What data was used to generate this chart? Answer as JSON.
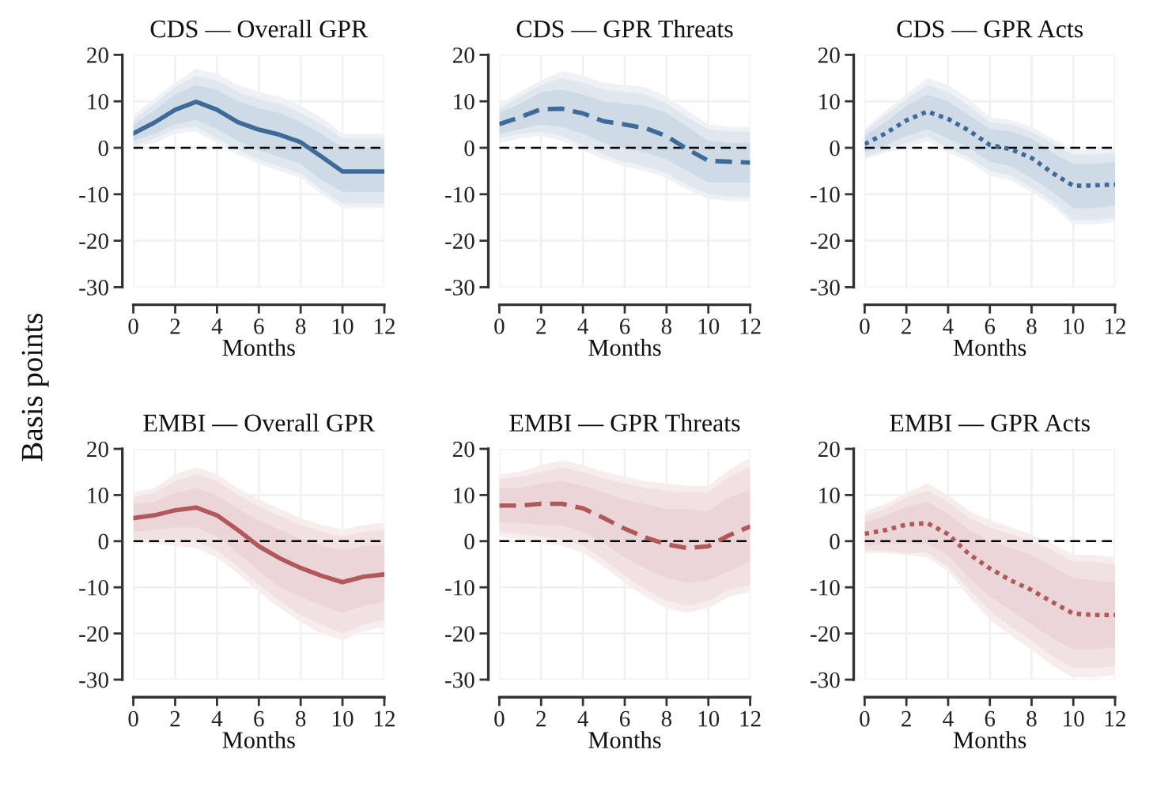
{
  "chart_data": [
    {
      "type": "line",
      "title": "CDS — Overall GPR",
      "xlabel": "Months",
      "ylabel": "Basis points",
      "x": [
        0,
        1,
        2,
        3,
        4,
        5,
        6,
        7,
        8,
        9,
        10,
        11,
        12
      ],
      "xlim": [
        0,
        12
      ],
      "ylim": [
        -30,
        20
      ],
      "xticks": [
        0,
        2,
        4,
        6,
        8,
        10,
        12
      ],
      "yticks": [
        -30,
        -20,
        -10,
        0,
        10,
        20
      ],
      "grid": true,
      "ref_lines": [
        {
          "axis": "y",
          "value": 0,
          "color": "#000000",
          "line_style": "dashed"
        }
      ],
      "series": [
        {
          "color": "#eef1f5",
          "values": [
            null,
            null,
            null,
            null,
            null,
            null,
            null,
            null,
            null,
            null,
            null,
            null,
            null
          ],
          "lower": [
            0,
            1,
            3,
            3.5,
            1,
            -1.5,
            -3.5,
            -5,
            -6.5,
            -10,
            -13,
            -13,
            -13
          ],
          "upper": [
            7,
            10.5,
            14,
            17,
            16,
            13.5,
            12,
            11,
            9,
            6.5,
            3,
            3,
            3
          ]
        },
        {
          "color": "#e1e7ee",
          "values": [
            null,
            null,
            null,
            null,
            null,
            null,
            null,
            null,
            null,
            null,
            null,
            null,
            null
          ],
          "lower": [
            0.5,
            2,
            4,
            4.5,
            2,
            -0.5,
            -2.5,
            -4,
            -5.5,
            -9,
            -12,
            -12,
            -12
          ],
          "upper": [
            6,
            9.5,
            13,
            15.5,
            14.5,
            12,
            10.5,
            9.5,
            7.5,
            5,
            2,
            2,
            2
          ]
        },
        {
          "type": "line",
          "color": "#3d6a98",
          "line_style": "solid",
          "values": [
            3.1,
            5.4,
            8.2,
            9.9,
            8.2,
            5.5,
            3.9,
            2.8,
            1.2,
            -1.9,
            -5.1,
            -5.1,
            -5.1
          ],
          "lower": [
            1.5,
            3,
            5,
            6,
            4,
            1.5,
            -0.5,
            -2,
            -3.5,
            -7,
            -9.5,
            -9.5,
            -9.5
          ],
          "upper": [
            5,
            8,
            11.5,
            13.5,
            12.5,
            10,
            8.5,
            7.5,
            5.5,
            3,
            0,
            0,
            0
          ]
        }
      ]
    },
    {
      "type": "line",
      "title": "CDS — GPR Threats",
      "xlabel": "Months",
      "x": [
        0,
        1,
        2,
        3,
        4,
        5,
        6,
        7,
        8,
        9,
        10,
        11,
        12
      ],
      "xlim": [
        0,
        12
      ],
      "ylim": [
        -30,
        20
      ],
      "xticks": [
        0,
        2,
        4,
        6,
        8,
        10,
        12
      ],
      "yticks": [
        -30,
        -20,
        -10,
        0,
        10,
        20
      ],
      "grid": true,
      "ref_lines": [
        {
          "axis": "y",
          "value": 0,
          "color": "#000000",
          "line_style": "dashed"
        }
      ],
      "series": [
        {
          "color": "#eef1f5",
          "values": [
            null,
            null,
            null,
            null,
            null,
            null,
            null,
            null,
            null,
            null,
            null,
            null,
            null
          ],
          "lower": [
            1,
            2,
            2.5,
            1.5,
            -0.5,
            -2.5,
            -4,
            -5,
            -6.5,
            -9,
            -11,
            -11.5,
            -11.5
          ],
          "upper": [
            9.5,
            12,
            14.5,
            16.5,
            15.5,
            14,
            13.5,
            13,
            11,
            8,
            5,
            4.5,
            4.5
          ]
        },
        {
          "color": "#e1e7ee",
          "values": [
            null,
            null,
            null,
            null,
            null,
            null,
            null,
            null,
            null,
            null,
            null,
            null,
            null
          ],
          "lower": [
            2,
            3,
            3.5,
            2.5,
            0.5,
            -1.5,
            -3,
            -4,
            -5.5,
            -8,
            -10,
            -10.5,
            -10.5
          ],
          "upper": [
            8.5,
            11,
            13.5,
            15,
            14,
            12.5,
            12,
            11.5,
            9.5,
            6.5,
            4,
            3.5,
            3.5
          ]
        },
        {
          "type": "line",
          "color": "#3d6a98",
          "line_style": "dashed",
          "values": [
            5.1,
            6.6,
            8.3,
            8.4,
            7.4,
            5.7,
            5.0,
            4.2,
            2.5,
            -0.3,
            -2.8,
            -3.0,
            -3.2
          ],
          "lower": [
            3,
            4,
            5,
            4.5,
            3,
            1,
            0,
            -1,
            -2.5,
            -5,
            -7.5,
            -7.5,
            -7.5
          ],
          "upper": [
            7.5,
            9.5,
            12,
            12.5,
            11.5,
            10,
            9.5,
            9,
            7.5,
            4.5,
            1.5,
            1,
            1
          ]
        }
      ]
    },
    {
      "type": "line",
      "title": "CDS — GPR Acts",
      "xlabel": "Months",
      "x": [
        0,
        1,
        2,
        3,
        4,
        5,
        6,
        7,
        8,
        9,
        10,
        11,
        12
      ],
      "xlim": [
        0,
        12
      ],
      "ylim": [
        -30,
        20
      ],
      "xticks": [
        0,
        2,
        4,
        6,
        8,
        10,
        12
      ],
      "yticks": [
        -30,
        -20,
        -10,
        0,
        10,
        20
      ],
      "grid": true,
      "ref_lines": [
        {
          "axis": "y",
          "value": 0,
          "color": "#000000",
          "line_style": "dashed"
        }
      ],
      "series": [
        {
          "color": "#eef1f5",
          "values": [
            null,
            null,
            null,
            null,
            null,
            null,
            null,
            null,
            null,
            null,
            null,
            null,
            null
          ],
          "lower": [
            -2.5,
            -1,
            0,
            1.5,
            -1,
            -3,
            -6,
            -7,
            -9.5,
            -12.5,
            -16.5,
            -16.5,
            -16
          ],
          "upper": [
            4,
            8,
            11.5,
            15,
            13.5,
            10.5,
            6.5,
            6,
            4.5,
            2,
            -0.5,
            -0.5,
            0
          ]
        },
        {
          "color": "#e1e7ee",
          "values": [
            null,
            null,
            null,
            null,
            null,
            null,
            null,
            null,
            null,
            null,
            null,
            null,
            null
          ],
          "lower": [
            -2,
            -0.5,
            1,
            2.5,
            0,
            -2,
            -5,
            -6,
            -8.5,
            -11.5,
            -15.5,
            -15.5,
            -15
          ],
          "upper": [
            3.5,
            7,
            10.5,
            13.5,
            12,
            9,
            5.5,
            5,
            3.5,
            1,
            -1.5,
            -1.5,
            -1
          ]
        },
        {
          "type": "line",
          "color": "#3d6a98",
          "line_style": "dotted",
          "values": [
            0.8,
            3.1,
            5.9,
            7.8,
            6.2,
            3.7,
            0.6,
            -0.3,
            -2.2,
            -5.4,
            -8.2,
            -8.1,
            -7.9
          ],
          "lower": [
            -1,
            0.5,
            2.5,
            4,
            2,
            0,
            -3,
            -4,
            -6.5,
            -9.5,
            -13,
            -13,
            -12.5
          ],
          "upper": [
            2.5,
            5.5,
            9,
            11.5,
            10,
            7,
            4,
            3.5,
            2,
            -1,
            -3.5,
            -3.5,
            -3
          ]
        }
      ]
    },
    {
      "type": "line",
      "title": "EMBI — Overall GPR",
      "xlabel": "Months",
      "x": [
        0,
        1,
        2,
        3,
        4,
        5,
        6,
        7,
        8,
        9,
        10,
        11,
        12
      ],
      "xlim": [
        0,
        12
      ],
      "ylim": [
        -30,
        20
      ],
      "xticks": [
        0,
        2,
        4,
        6,
        8,
        10,
        12
      ],
      "yticks": [
        -30,
        -20,
        -10,
        0,
        10,
        20
      ],
      "grid": true,
      "ref_lines": [
        {
          "axis": "y",
          "value": 0,
          "color": "#000000",
          "line_style": "dashed"
        }
      ],
      "series": [
        {
          "color": "#f7eded",
          "values": [
            null,
            null,
            null,
            null,
            null,
            null,
            null,
            null,
            null,
            null,
            null,
            null,
            null
          ],
          "lower": [
            -0.5,
            -0.5,
            -1,
            -1.5,
            -3.5,
            -7,
            -11,
            -14.5,
            -17.5,
            -20,
            -21.5,
            -19.5,
            -18.5
          ],
          "upper": [
            10.5,
            11.5,
            14.5,
            16,
            14.5,
            11.5,
            9,
            7,
            5,
            3.5,
            2.5,
            3.5,
            4
          ]
        },
        {
          "color": "#f1e1e2",
          "values": [
            null,
            null,
            null,
            null,
            null,
            null,
            null,
            null,
            null,
            null,
            null,
            null,
            null
          ],
          "lower": [
            0.5,
            0.5,
            0.5,
            0,
            -2,
            -5.5,
            -9.5,
            -13,
            -16,
            -18,
            -20,
            -18,
            -17
          ],
          "upper": [
            9.5,
            10.5,
            13,
            14.5,
            13,
            10,
            7.5,
            5.5,
            3.5,
            2,
            1,
            2,
            2.5
          ]
        },
        {
          "type": "line",
          "color": "#b0585c",
          "line_style": "solid",
          "values": [
            5.0,
            5.6,
            6.7,
            7.3,
            5.6,
            2.4,
            -1.1,
            -3.7,
            -5.8,
            -7.5,
            -8.9,
            -7.7,
            -7.2
          ],
          "lower": [
            2,
            2.5,
            3,
            3,
            1,
            -2.5,
            -6.5,
            -10,
            -12,
            -14,
            -15.5,
            -14,
            -13
          ],
          "upper": [
            8,
            8.5,
            10.5,
            11.5,
            10,
            7,
            4.5,
            2.5,
            0.5,
            -1,
            -2,
            -1,
            -1
          ]
        }
      ]
    },
    {
      "type": "line",
      "title": "EMBI — GPR Threats",
      "xlabel": "Months",
      "x": [
        0,
        1,
        2,
        3,
        4,
        5,
        6,
        7,
        8,
        9,
        10,
        11,
        12
      ],
      "xlim": [
        0,
        12
      ],
      "ylim": [
        -30,
        20
      ],
      "xticks": [
        0,
        2,
        4,
        6,
        8,
        10,
        12
      ],
      "yticks": [
        -30,
        -20,
        -10,
        0,
        10,
        20
      ],
      "grid": true,
      "ref_lines": [
        {
          "axis": "y",
          "value": 0,
          "color": "#000000",
          "line_style": "dashed"
        }
      ],
      "series": [
        {
          "color": "#f7eded",
          "values": [
            null,
            null,
            null,
            null,
            null,
            null,
            null,
            null,
            null,
            null,
            null,
            null,
            null
          ],
          "lower": [
            1,
            0.5,
            -0.5,
            -1,
            -2.5,
            -5.5,
            -9,
            -12,
            -14.5,
            -15.5,
            -14.5,
            -12,
            -11
          ],
          "upper": [
            14.5,
            15,
            16.5,
            17.5,
            16.5,
            15,
            14,
            13,
            12.5,
            12,
            12,
            15.5,
            18
          ]
        },
        {
          "color": "#f1e1e2",
          "values": [
            null,
            null,
            null,
            null,
            null,
            null,
            null,
            null,
            null,
            null,
            null,
            null,
            null
          ],
          "lower": [
            2,
            1.5,
            1,
            0.5,
            -1,
            -4,
            -7.5,
            -10.5,
            -13,
            -14,
            -13,
            -10.5,
            -9.5
          ],
          "upper": [
            13.5,
            14,
            15,
            16,
            15,
            13.5,
            12.5,
            11.5,
            11,
            10.5,
            10.5,
            14,
            16
          ]
        },
        {
          "type": "line",
          "color": "#b0585c",
          "line_style": "dashed",
          "values": [
            7.7,
            7.7,
            8.1,
            8.1,
            7.1,
            5.0,
            2.7,
            0.8,
            -0.7,
            -1.5,
            -1.1,
            1.3,
            3.2
          ],
          "lower": [
            4,
            4,
            3.5,
            3.5,
            2,
            -0.5,
            -3.5,
            -6,
            -8,
            -9,
            -8.5,
            -6.5,
            -4.5
          ],
          "upper": [
            11.5,
            11.5,
            12.5,
            13,
            12,
            10.5,
            9,
            8,
            7,
            7,
            6.5,
            9.5,
            11
          ]
        }
      ]
    },
    {
      "type": "line",
      "title": "EMBI — GPR Acts",
      "xlabel": "Months",
      "x": [
        0,
        1,
        2,
        3,
        4,
        5,
        6,
        7,
        8,
        9,
        10,
        11,
        12
      ],
      "xlim": [
        0,
        12
      ],
      "ylim": [
        -30,
        20
      ],
      "xticks": [
        0,
        2,
        4,
        6,
        8,
        10,
        12
      ],
      "yticks": [
        -30,
        -20,
        -10,
        0,
        10,
        20
      ],
      "grid": true,
      "ref_lines": [
        {
          "axis": "y",
          "value": 0,
          "color": "#000000",
          "line_style": "dashed"
        }
      ],
      "series": [
        {
          "color": "#f7eded",
          "values": [
            null,
            null,
            null,
            null,
            null,
            null,
            null,
            null,
            null,
            null,
            null,
            null,
            null
          ],
          "lower": [
            -2.5,
            -2.5,
            -3,
            -3.5,
            -6.5,
            -12,
            -17,
            -20.5,
            -23.5,
            -27,
            -29.5,
            -29.5,
            -29
          ],
          "upper": [
            6.5,
            8,
            10.5,
            12.5,
            10,
            6.5,
            4.5,
            3,
            1.5,
            -0.5,
            -3,
            -3,
            -3.5
          ]
        },
        {
          "color": "#f1e1e2",
          "values": [
            null,
            null,
            null,
            null,
            null,
            null,
            null,
            null,
            null,
            null,
            null,
            null,
            null
          ],
          "lower": [
            -2,
            -2,
            -2.5,
            -2.5,
            -5.5,
            -10.5,
            -15,
            -18.5,
            -21.5,
            -25,
            -27.5,
            -27.5,
            -27
          ],
          "upper": [
            5.5,
            7,
            9.5,
            11,
            8.5,
            5,
            3,
            1.5,
            0,
            -2,
            -4.5,
            -4.5,
            -5
          ]
        },
        {
          "type": "line",
          "color": "#b0585c",
          "line_style": "dotted",
          "values": [
            1.6,
            2.4,
            3.6,
            3.9,
            1.5,
            -2.8,
            -5.9,
            -8.5,
            -10.6,
            -13.2,
            -15.7,
            -16.0,
            -16.0
          ],
          "lower": [
            -1,
            -0.5,
            -0.5,
            -0.5,
            -3,
            -8,
            -12,
            -15,
            -18,
            -21,
            -23.5,
            -23.5,
            -23
          ],
          "upper": [
            4,
            5.5,
            7.5,
            8.5,
            6,
            2.5,
            0,
            -1.5,
            -3,
            -5.5,
            -8,
            -8.5,
            -9
          ]
        }
      ]
    }
  ]
}
